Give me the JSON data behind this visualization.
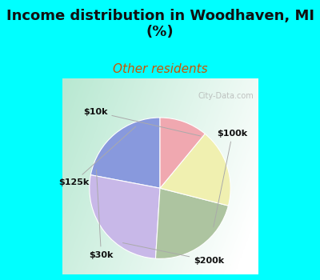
{
  "title": "Income distribution in Woodhaven, MI\n(%)",
  "subtitle": "Other residents",
  "title_color": "#111111",
  "subtitle_color": "#cc5500",
  "background_color": "#00ffff",
  "labels": [
    "$10k",
    "$100k",
    "$200k",
    "$30k",
    "$125k"
  ],
  "values": [
    22,
    27,
    22,
    18,
    11
  ],
  "colors": [
    "#8899dd",
    "#c8b8e8",
    "#adc4a0",
    "#f0f0b0",
    "#f0a8b0"
  ],
  "startangle": 90,
  "watermark": "City-Data.com",
  "figsize": [
    4.0,
    3.5
  ],
  "dpi": 100,
  "title_fontsize": 13,
  "subtitle_fontsize": 11
}
